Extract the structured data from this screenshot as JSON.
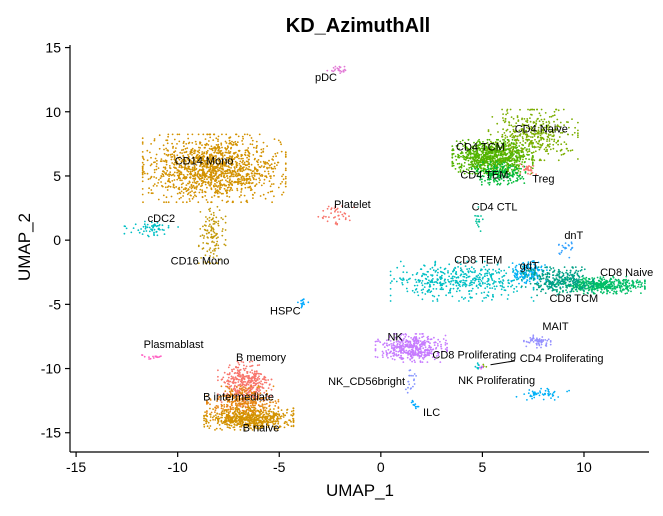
{
  "chart_data": {
    "type": "scatter",
    "title": "KD_AzimuthAll",
    "xlabel": "UMAP_1",
    "ylabel": "UMAP_2",
    "xlim": [
      -15.3,
      13.2
    ],
    "ylim": [
      -16.5,
      15.2
    ],
    "xticks": [
      -15,
      -10,
      -5,
      0,
      5,
      10
    ],
    "yticks": [
      15,
      10,
      5,
      0,
      -5,
      -10,
      -15
    ],
    "grid": false,
    "legend": "none",
    "clusters": [
      {
        "label": "pDC",
        "color": "#E27AD6",
        "cx": -2.1,
        "cy": 13.3,
        "sx": 0.3,
        "sy": 0.15,
        "n": 25,
        "lx": -2.7,
        "ly": 12.4
      },
      {
        "label": "CD14 Mono",
        "color": "#D39200",
        "cx": -8.2,
        "cy": 5.6,
        "sx": 1.6,
        "sy": 1.2,
        "n": 1400,
        "lx": -8.7,
        "ly": 5.9
      },
      {
        "label": "CD16 Mono",
        "color": "#C39A0A",
        "cx": -8.3,
        "cy": 0.4,
        "sx": 0.3,
        "sy": 1.0,
        "n": 120,
        "lx": -8.9,
        "ly": -1.9
      },
      {
        "label": "cDC2",
        "color": "#00BFC4",
        "cx": -11.3,
        "cy": 0.9,
        "sx": 0.6,
        "sy": 0.3,
        "n": 60,
        "lx": -10.8,
        "ly": 1.4
      },
      {
        "label": "Platelet",
        "color": "#F8766D",
        "cx": -2.2,
        "cy": 2.0,
        "sx": 0.4,
        "sy": 0.4,
        "n": 40,
        "lx": -1.4,
        "ly": 2.5
      },
      {
        "label": "HSPC",
        "color": "#00A9FF",
        "cx": -3.9,
        "cy": -4.9,
        "sx": 0.15,
        "sy": 0.2,
        "n": 15,
        "lx": -4.7,
        "ly": -5.8
      },
      {
        "label": "Plasmablast",
        "color": "#FF61C3",
        "cx": -11.1,
        "cy": -9.1,
        "sx": 0.3,
        "sy": 0.1,
        "n": 15,
        "lx": -10.2,
        "ly": -8.4
      },
      {
        "label": "B memory",
        "color": "#F8766D",
        "cx": -6.7,
        "cy": -11.2,
        "sx": 0.6,
        "sy": 0.8,
        "n": 350,
        "lx": -5.9,
        "ly": -9.4
      },
      {
        "label": "B intermediate",
        "color": "#E68613",
        "cx": -6.8,
        "cy": -12.7,
        "sx": 0.8,
        "sy": 0.6,
        "n": 350,
        "lx": -7.0,
        "ly": -12.5
      },
      {
        "label": "B naive",
        "color": "#D39200",
        "cx": -6.5,
        "cy": -13.9,
        "sx": 1.0,
        "sy": 0.4,
        "n": 600,
        "lx": -5.9,
        "ly": -14.9
      },
      {
        "label": "CD4 TCM",
        "color": "#53B400",
        "cx": 5.5,
        "cy": 6.5,
        "sx": 0.9,
        "sy": 0.6,
        "n": 900,
        "lx": 4.9,
        "ly": 7.0
      },
      {
        "label": "CD4 Naive",
        "color": "#7CAE00",
        "cx": 7.5,
        "cy": 8.2,
        "sx": 1.0,
        "sy": 0.9,
        "n": 400,
        "lx": 7.9,
        "ly": 8.4
      },
      {
        "label": "CD4 TEM",
        "color": "#00BA38",
        "cx": 5.8,
        "cy": 5.2,
        "sx": 0.6,
        "sy": 0.4,
        "n": 200,
        "lx": 5.1,
        "ly": 4.8
      },
      {
        "label": "Treg",
        "color": "#F8766D",
        "cx": 7.3,
        "cy": 5.5,
        "sx": 0.2,
        "sy": 0.2,
        "n": 30,
        "lx": 8.0,
        "ly": 4.5
      },
      {
        "label": "CD4 CTL",
        "color": "#00C19A",
        "cx": 4.8,
        "cy": 1.6,
        "sx": 0.1,
        "sy": 0.5,
        "n": 15,
        "lx": 5.6,
        "ly": 2.3
      },
      {
        "label": "CD8 TEM",
        "color": "#00BFC4",
        "cx": 4.0,
        "cy": -3.2,
        "sx": 1.6,
        "sy": 0.7,
        "n": 450,
        "lx": 4.8,
        "ly": -1.8
      },
      {
        "label": "gdT",
        "color": "#00B0F6",
        "cx": 7.3,
        "cy": -2.5,
        "sx": 0.4,
        "sy": 0.4,
        "n": 150,
        "lx": 7.3,
        "ly": -2.3
      },
      {
        "label": "dnT",
        "color": "#35A2FF",
        "cx": 9.1,
        "cy": -0.7,
        "sx": 0.2,
        "sy": 0.3,
        "n": 20,
        "lx": 9.5,
        "ly": 0.1
      },
      {
        "label": "CD8 Naive",
        "color": "#00BE67",
        "cx": 10.8,
        "cy": -3.5,
        "sx": 1.0,
        "sy": 0.3,
        "n": 450,
        "lx": 12.1,
        "ly": -2.8
      },
      {
        "label": "CD8 TCM",
        "color": "#00A087",
        "cx": 8.7,
        "cy": -3.2,
        "sx": 0.8,
        "sy": 0.5,
        "n": 300,
        "lx": 9.5,
        "ly": -4.8
      },
      {
        "label": "MAIT",
        "color": "#9590FF",
        "cx": 7.7,
        "cy": -7.9,
        "sx": 0.3,
        "sy": 0.25,
        "n": 60,
        "lx": 8.6,
        "ly": -7.0
      },
      {
        "label": "NK",
        "color": "#C77CFF",
        "cx": 1.5,
        "cy": -8.4,
        "sx": 0.8,
        "sy": 0.5,
        "n": 450,
        "lx": 0.7,
        "ly": -7.8
      },
      {
        "label": "CD8 Proliferating",
        "color": "#00BFC4",
        "cx": 4.8,
        "cy": -9.8,
        "sx": 0.15,
        "sy": 0.1,
        "n": 8,
        "lx": 4.6,
        "ly": -9.2
      },
      {
        "label": "CD4 Proliferating",
        "color": "#7CAE00",
        "cx": 5.0,
        "cy": -9.8,
        "sx": 0.1,
        "sy": 0.1,
        "n": 5,
        "lx": 8.9,
        "ly": -9.5
      },
      {
        "label": "NK Proliferating",
        "color": "#E76BF3",
        "cx": 4.9,
        "cy": -9.9,
        "sx": 0.1,
        "sy": 0.08,
        "n": 5,
        "lx": 5.7,
        "ly": -11.2
      },
      {
        "label": "NK_CD56bright",
        "color": "#8494FF",
        "cx": 1.5,
        "cy": -11.0,
        "sx": 0.12,
        "sy": 0.4,
        "n": 20,
        "lx": -0.7,
        "ly": -11.3
      },
      {
        "label": "ILC",
        "color": "#00A9FF",
        "cx": 1.7,
        "cy": -12.8,
        "sx": 0.1,
        "sy": 0.2,
        "n": 10,
        "lx": 2.5,
        "ly": -13.7
      },
      {
        "label": "",
        "color": "#00B0F6",
        "cx": 8.0,
        "cy": -12.0,
        "sx": 0.6,
        "sy": 0.2,
        "n": 50,
        "lx": 0,
        "ly": 0
      }
    ],
    "arrow": {
      "x1": 5.4,
      "y1": -9.7,
      "x2": 6.6,
      "y2": -9.4
    }
  }
}
